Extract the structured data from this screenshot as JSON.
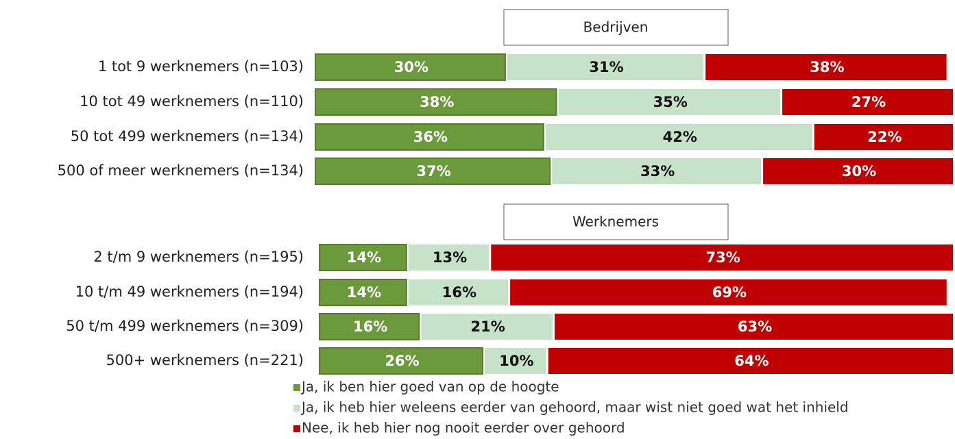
{
  "chart_data": [
    {
      "type": "stacked-bar-horizontal",
      "title": "Bedrijven",
      "categories": [
        "1 tot 9 werknemers  (n=103)",
        "10 tot 49 werknemers  (n=110)",
        "50 tot 499 werknemers  (n=134)",
        "500 of meer werknemers  (n=134)"
      ],
      "xlim": [
        0,
        100
      ],
      "series": [
        {
          "color": "#6b9a3c",
          "values": [
            30,
            38,
            36,
            37
          ],
          "value_labels": [
            "30%",
            "38%",
            "36%",
            "37%"
          ]
        },
        {
          "color": "#c6e2c9",
          "values": [
            31,
            35,
            42,
            33
          ],
          "value_labels": [
            "31%",
            "35%",
            "42%",
            "33%"
          ]
        },
        {
          "color": "#c00000",
          "values": [
            38,
            27,
            22,
            30
          ],
          "value_labels": [
            "38%",
            "27%",
            "22%",
            "30%"
          ]
        }
      ]
    },
    {
      "type": "stacked-bar-horizontal",
      "title": "Werknemers",
      "categories": [
        "2 t/m 9 werknemers  (n=195)",
        "10 t/m 49 werknemers  (n=194)",
        "50 t/m 499 werknemers  (n=309)",
        "500+ werknemers  (n=221)"
      ],
      "xlim": [
        0,
        100
      ],
      "legend": "bottom",
      "series": [
        {
          "name": "Ja, ik ben hier goed van op de hoogte",
          "color": "#6b9a3c",
          "values": [
            14,
            14,
            16,
            26
          ],
          "value_labels": [
            "14%",
            "14%",
            "16%",
            "26%"
          ]
        },
        {
          "name": "Ja, ik heb hier weleens eerder van gehoord, maar wist niet goed wat het inhield",
          "color": "#c6e2c9",
          "values": [
            13,
            16,
            21,
            10
          ],
          "value_labels": [
            "13%",
            "16%",
            "21%",
            "10%"
          ]
        },
        {
          "name": "Nee, ik heb hier nog nooit eerder over gehoord",
          "color": "#c00000",
          "values": [
            73,
            69,
            63,
            64
          ],
          "value_labels": [
            "73%",
            "69%",
            "63%",
            "64%"
          ]
        }
      ]
    }
  ]
}
